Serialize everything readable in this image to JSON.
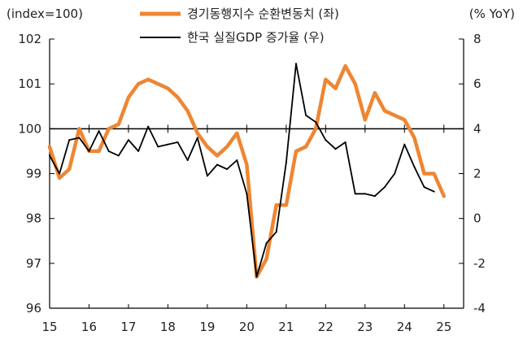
{
  "chart_data": {
    "type": "line",
    "left_unit": "(index=100)",
    "right_unit": "(% YoY)",
    "left_axis": {
      "ylim": [
        96,
        102
      ],
      "ticks": [
        "96",
        "97",
        "98",
        "99",
        "100",
        "101",
        "102"
      ]
    },
    "right_axis": {
      "ylim": [
        -4,
        8
      ],
      "ticks": [
        "-4",
        "-2",
        "0",
        "2",
        "4",
        "6",
        "8"
      ]
    },
    "x_axis": {
      "xlim": [
        2015,
        2025.5
      ],
      "ticks": [
        "15",
        "16",
        "17",
        "18",
        "19",
        "20",
        "21",
        "22",
        "23",
        "24",
        "25"
      ]
    },
    "reference_line": {
      "axis": "left",
      "value": 100
    },
    "legend_placement": "top-center",
    "series": [
      {
        "name": "경기동행지수 순환변동치 (좌)",
        "axis": "left",
        "color": "#EE8633",
        "x": [
          2015.0,
          2015.25,
          2015.5,
          2015.75,
          2016.0,
          2016.25,
          2016.5,
          2016.75,
          2017.0,
          2017.25,
          2017.5,
          2017.75,
          2018.0,
          2018.25,
          2018.5,
          2018.75,
          2019.0,
          2019.25,
          2019.5,
          2019.75,
          2020.0,
          2020.25,
          2020.5,
          2020.75,
          2021.0,
          2021.25,
          2021.5,
          2021.75,
          2022.0,
          2022.25,
          2022.5,
          2022.75,
          2023.0,
          2023.25,
          2023.5,
          2023.75,
          2024.0,
          2024.25,
          2024.5,
          2024.75,
          2025.0
        ],
        "values": [
          99.6,
          98.9,
          99.1,
          100.0,
          99.5,
          99.5,
          100.0,
          100.1,
          100.7,
          101.0,
          101.1,
          101.0,
          100.9,
          100.7,
          100.4,
          99.9,
          99.6,
          99.4,
          99.6,
          99.9,
          99.2,
          96.7,
          97.1,
          98.3,
          98.3,
          99.5,
          99.6,
          100.0,
          101.1,
          100.9,
          101.4,
          101.0,
          100.2,
          100.8,
          100.4,
          100.3,
          100.2,
          99.8,
          99.0,
          99.0,
          98.5
        ]
      },
      {
        "name": "한국 실질GDP 증가율 (우)",
        "axis": "right",
        "color": "#000000",
        "x": [
          2015.0,
          2015.25,
          2015.5,
          2015.75,
          2016.0,
          2016.25,
          2016.5,
          2016.75,
          2017.0,
          2017.25,
          2017.5,
          2017.75,
          2018.0,
          2018.25,
          2018.5,
          2018.75,
          2019.0,
          2019.25,
          2019.5,
          2019.75,
          2020.0,
          2020.25,
          2020.5,
          2020.75,
          2021.0,
          2021.25,
          2021.5,
          2021.75,
          2022.0,
          2022.25,
          2022.5,
          2022.75,
          2023.0,
          2023.25,
          2023.5,
          2023.75,
          2024.0,
          2024.25,
          2024.5,
          2024.75
        ],
        "values": [
          2.8,
          2.0,
          3.5,
          3.6,
          3.0,
          3.9,
          3.0,
          2.8,
          3.5,
          3.0,
          4.1,
          3.2,
          3.3,
          3.4,
          2.6,
          3.6,
          1.9,
          2.4,
          2.2,
          2.6,
          1.1,
          -2.6,
          -1.1,
          -0.6,
          2.5,
          6.9,
          4.6,
          4.3,
          3.5,
          3.1,
          3.4,
          1.1,
          1.1,
          1.0,
          1.4,
          2.0,
          3.3,
          2.3,
          1.4,
          1.2
        ]
      }
    ]
  }
}
